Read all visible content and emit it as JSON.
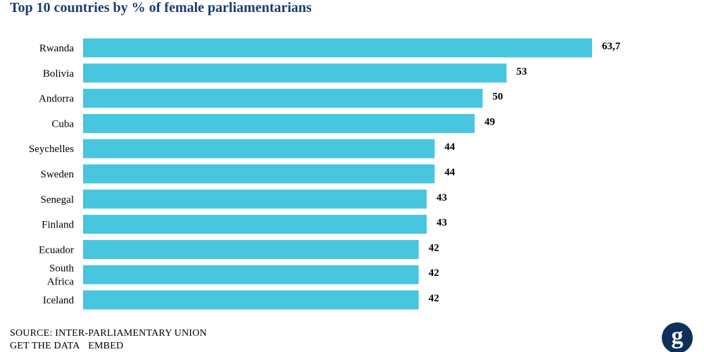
{
  "colors": {
    "bar": "#48c5df",
    "title": "#1c3d6e",
    "text": "#000000",
    "logo_bg": "#0e2f5a"
  },
  "chart_data": {
    "type": "bar",
    "orientation": "horizontal",
    "title": "Top 10 countries by % of female parliamentarians",
    "categories": [
      "Rwanda",
      "Bolivia",
      "Andorra",
      "Cuba",
      "Seychelles",
      "Sweden",
      "Senegal",
      "Finland",
      "Ecuador",
      "South Africa",
      "Iceland"
    ],
    "category_lines": [
      [
        "Rwanda"
      ],
      [
        "Bolivia"
      ],
      [
        "Andorra"
      ],
      [
        "Cuba"
      ],
      [
        "Seychelles"
      ],
      [
        "Sweden"
      ],
      [
        "Senegal"
      ],
      [
        "Finland"
      ],
      [
        "Ecuador"
      ],
      [
        "South",
        "Africa"
      ],
      [
        "Iceland"
      ]
    ],
    "values": [
      63.7,
      53,
      50,
      49,
      44,
      44,
      43,
      43,
      42,
      42,
      42
    ],
    "value_labels": [
      "63,7",
      "53",
      "50",
      "49",
      "44",
      "44",
      "43",
      "43",
      "42",
      "42",
      "42"
    ],
    "xlabel": "",
    "ylabel": "",
    "grid": false,
    "axis_ticks": false
  },
  "footer": {
    "source": "SOURCE: INTER-PARLIAMENTARY UNION",
    "get_data": "GET THE DATA",
    "embed": "EMBED"
  },
  "logo": {
    "icon": "guardian-g-logo",
    "letter": "g"
  }
}
